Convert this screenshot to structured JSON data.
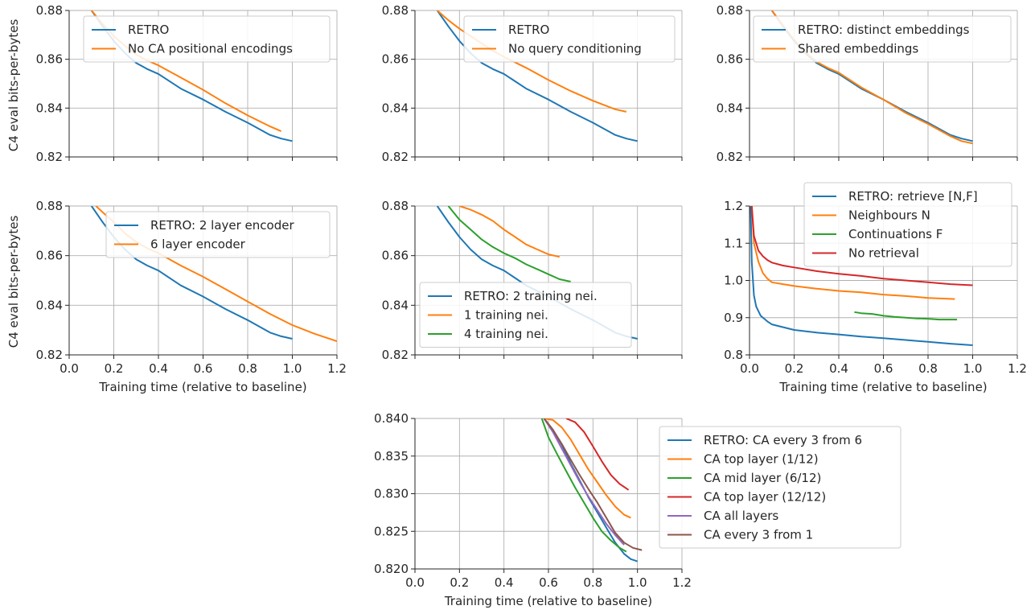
{
  "figure": {
    "ylabel_row1": "C4 eval bits-per-bytes",
    "ylabel_row2": "C4 eval bits-per-bytes",
    "xlabel": "Training time (relative to baseline)"
  },
  "colors": {
    "blue": "#1f77b4",
    "orange": "#ff7f0e",
    "green": "#2ca02c",
    "red": "#d62728",
    "purple": "#9467bd",
    "brown": "#8c564b",
    "grid": "#b0b0b0",
    "axis": "#262626"
  },
  "chart_data": [
    {
      "type": "line",
      "xlim": [
        0,
        1.2
      ],
      "ylim": [
        0.82,
        0.88
      ],
      "xticks": [
        0,
        0.2,
        0.4,
        0.6,
        0.8,
        1.0,
        1.2
      ],
      "yticks": [
        0.82,
        0.84,
        0.86,
        0.88
      ],
      "xlabel": "",
      "ylabel": "C4 eval bits-per-bytes",
      "grid": true,
      "legend": "top-left",
      "series": [
        {
          "name": "RETRO",
          "color": "blue",
          "x": [
            0.1,
            0.15,
            0.2,
            0.25,
            0.3,
            0.35,
            0.4,
            0.5,
            0.6,
            0.7,
            0.8,
            0.9,
            0.95,
            1.0
          ],
          "y": [
            0.88,
            0.8735,
            0.8675,
            0.8625,
            0.8585,
            0.856,
            0.854,
            0.848,
            0.8435,
            0.8385,
            0.834,
            0.829,
            0.8275,
            0.8265
          ]
        },
        {
          "name": "No CA positional encodings",
          "color": "orange",
          "x": [
            0.1,
            0.15,
            0.2,
            0.25,
            0.3,
            0.35,
            0.4,
            0.5,
            0.6,
            0.7,
            0.8,
            0.9,
            0.95
          ],
          "y": [
            0.88,
            0.8745,
            0.8695,
            0.8655,
            0.862,
            0.8595,
            0.8575,
            0.8525,
            0.8475,
            0.842,
            0.837,
            0.8325,
            0.8305
          ]
        }
      ]
    },
    {
      "type": "line",
      "xlim": [
        0,
        1.2
      ],
      "ylim": [
        0.82,
        0.88
      ],
      "xticks": [
        0,
        0.2,
        0.4,
        0.6,
        0.8,
        1.0,
        1.2
      ],
      "yticks": [
        0.82,
        0.84,
        0.86,
        0.88
      ],
      "xlabel": "",
      "ylabel": "",
      "grid": true,
      "legend": "top-right",
      "series": [
        {
          "name": "RETRO",
          "color": "blue",
          "x": [
            0.1,
            0.15,
            0.2,
            0.25,
            0.3,
            0.35,
            0.4,
            0.5,
            0.6,
            0.7,
            0.8,
            0.9,
            0.95,
            1.0
          ],
          "y": [
            0.88,
            0.8735,
            0.8675,
            0.8625,
            0.8585,
            0.856,
            0.854,
            0.848,
            0.8435,
            0.8385,
            0.834,
            0.829,
            0.8275,
            0.8265
          ]
        },
        {
          "name": "No query conditioning",
          "color": "orange",
          "x": [
            0.1,
            0.15,
            0.2,
            0.25,
            0.3,
            0.35,
            0.4,
            0.5,
            0.6,
            0.7,
            0.8,
            0.9,
            0.95
          ],
          "y": [
            0.88,
            0.876,
            0.8725,
            0.8695,
            0.8665,
            0.8635,
            0.861,
            0.8565,
            0.8515,
            0.847,
            0.843,
            0.8395,
            0.8385
          ]
        }
      ]
    },
    {
      "type": "line",
      "xlim": [
        0,
        1.2
      ],
      "ylim": [
        0.82,
        0.88
      ],
      "xticks": [
        0,
        0.2,
        0.4,
        0.6,
        0.8,
        1.0,
        1.2
      ],
      "yticks": [
        0.82,
        0.84,
        0.86,
        0.88
      ],
      "xlabel": "",
      "ylabel": "",
      "grid": true,
      "legend": "top-right",
      "series": [
        {
          "name": "RETRO: distinct embeddings",
          "color": "blue",
          "x": [
            0.1,
            0.15,
            0.2,
            0.25,
            0.3,
            0.35,
            0.4,
            0.5,
            0.6,
            0.7,
            0.8,
            0.9,
            0.95,
            1.0
          ],
          "y": [
            0.88,
            0.8735,
            0.8675,
            0.8625,
            0.8585,
            0.856,
            0.854,
            0.848,
            0.8435,
            0.8385,
            0.834,
            0.829,
            0.8275,
            0.8265
          ]
        },
        {
          "name": "Shared embeddings",
          "color": "orange",
          "x": [
            0.1,
            0.15,
            0.2,
            0.25,
            0.3,
            0.35,
            0.4,
            0.5,
            0.6,
            0.7,
            0.8,
            0.9,
            0.95,
            1.0
          ],
          "y": [
            0.88,
            0.874,
            0.868,
            0.863,
            0.859,
            0.8565,
            0.8545,
            0.8485,
            0.8435,
            0.838,
            0.8335,
            0.8285,
            0.8265,
            0.8255
          ]
        }
      ]
    },
    {
      "type": "line",
      "xlim": [
        0,
        1.2
      ],
      "ylim": [
        0.82,
        0.88
      ],
      "xticks": [
        0,
        0.2,
        0.4,
        0.6,
        0.8,
        1.0,
        1.2
      ],
      "yticks": [
        0.82,
        0.84,
        0.86,
        0.88
      ],
      "xlabel": "Training time (relative to baseline)",
      "ylabel": "C4 eval bits-per-bytes",
      "grid": true,
      "legend": "top-right",
      "series": [
        {
          "name": "RETRO: 2 layer encoder",
          "color": "blue",
          "x": [
            0.1,
            0.15,
            0.2,
            0.25,
            0.3,
            0.35,
            0.4,
            0.5,
            0.6,
            0.7,
            0.8,
            0.9,
            0.95,
            1.0
          ],
          "y": [
            0.88,
            0.8735,
            0.8675,
            0.8625,
            0.8585,
            0.856,
            0.854,
            0.848,
            0.8435,
            0.8385,
            0.834,
            0.829,
            0.8275,
            0.8265
          ]
        },
        {
          "name": "6 layer encoder",
          "color": "orange",
          "x": [
            0.12,
            0.15,
            0.2,
            0.25,
            0.3,
            0.35,
            0.4,
            0.5,
            0.6,
            0.7,
            0.8,
            0.9,
            1.0,
            1.1,
            1.2
          ],
          "y": [
            0.88,
            0.8775,
            0.8735,
            0.869,
            0.8655,
            0.863,
            0.861,
            0.856,
            0.8515,
            0.8465,
            0.8415,
            0.8365,
            0.832,
            0.8285,
            0.8255
          ]
        }
      ]
    },
    {
      "type": "line",
      "xlim": [
        0,
        1.2
      ],
      "ylim": [
        0.82,
        0.88
      ],
      "xticks": [
        0,
        0.2,
        0.4,
        0.6,
        0.8,
        1.0,
        1.2
      ],
      "yticks": [
        0.82,
        0.84,
        0.86,
        0.88
      ],
      "xlabel": "",
      "ylabel": "",
      "grid": true,
      "legend": "bottom-left",
      "series": [
        {
          "name": "RETRO: 2 training nei.",
          "color": "blue",
          "x": [
            0.1,
            0.15,
            0.2,
            0.25,
            0.3,
            0.35,
            0.4,
            0.5,
            0.6,
            0.7,
            0.8,
            0.9,
            0.95,
            1.0
          ],
          "y": [
            0.88,
            0.8735,
            0.8675,
            0.8625,
            0.8585,
            0.856,
            0.854,
            0.848,
            0.8435,
            0.8385,
            0.834,
            0.829,
            0.8275,
            0.8265
          ]
        },
        {
          "name": "1 training nei.",
          "color": "orange",
          "x": [
            0.2,
            0.25,
            0.3,
            0.35,
            0.4,
            0.45,
            0.5,
            0.55,
            0.6,
            0.65
          ],
          "y": [
            0.88,
            0.8785,
            0.8765,
            0.874,
            0.8705,
            0.8675,
            0.8645,
            0.8625,
            0.8605,
            0.8595
          ]
        },
        {
          "name": "4 training nei.",
          "color": "green",
          "x": [
            0.15,
            0.2,
            0.25,
            0.3,
            0.35,
            0.4,
            0.45,
            0.5,
            0.55,
            0.6,
            0.65,
            0.7
          ],
          "y": [
            0.88,
            0.8745,
            0.8705,
            0.8665,
            0.8635,
            0.861,
            0.859,
            0.8565,
            0.8545,
            0.8525,
            0.8505,
            0.8495
          ]
        }
      ]
    },
    {
      "type": "line",
      "xlim": [
        0,
        1.2
      ],
      "ylim": [
        0.8,
        1.2
      ],
      "xticks": [
        0,
        0.2,
        0.4,
        0.6,
        0.8,
        1.0,
        1.2
      ],
      "yticks": [
        0.8,
        0.9,
        1.0,
        1.1,
        1.2
      ],
      "xlabel": "Training time (relative to baseline)",
      "ylabel": "",
      "grid": true,
      "legend": "top-right",
      "series": [
        {
          "name": "RETRO: retrieve [N,F]",
          "color": "blue",
          "x": [
            0.005,
            0.01,
            0.02,
            0.03,
            0.05,
            0.08,
            0.1,
            0.2,
            0.3,
            0.4,
            0.5,
            0.6,
            0.7,
            0.8,
            0.9,
            1.0
          ],
          "y": [
            1.2,
            1.05,
            0.96,
            0.93,
            0.905,
            0.89,
            0.882,
            0.867,
            0.86,
            0.855,
            0.849,
            0.845,
            0.84,
            0.835,
            0.83,
            0.826
          ]
        },
        {
          "name": "Neighbours N",
          "color": "orange",
          "x": [
            0.01,
            0.02,
            0.04,
            0.06,
            0.08,
            0.1,
            0.15,
            0.2,
            0.3,
            0.4,
            0.5,
            0.6,
            0.7,
            0.8,
            0.92
          ],
          "y": [
            1.2,
            1.1,
            1.05,
            1.02,
            1.005,
            0.995,
            0.99,
            0.985,
            0.978,
            0.972,
            0.968,
            0.962,
            0.958,
            0.953,
            0.95
          ]
        },
        {
          "name": "Continuations F",
          "color": "green",
          "x": [
            0.47,
            0.5,
            0.55,
            0.6,
            0.65,
            0.7,
            0.75,
            0.8,
            0.85,
            0.93
          ],
          "y": [
            0.915,
            0.912,
            0.91,
            0.905,
            0.902,
            0.9,
            0.898,
            0.897,
            0.895,
            0.895
          ]
        },
        {
          "name": "No retrieval",
          "color": "red",
          "x": [
            0.01,
            0.02,
            0.04,
            0.06,
            0.08,
            0.1,
            0.15,
            0.2,
            0.3,
            0.4,
            0.5,
            0.6,
            0.7,
            0.8,
            0.9,
            1.0
          ],
          "y": [
            1.2,
            1.12,
            1.08,
            1.065,
            1.055,
            1.048,
            1.04,
            1.035,
            1.025,
            1.018,
            1.012,
            1.005,
            1.0,
            0.995,
            0.99,
            0.987
          ]
        }
      ]
    },
    {
      "type": "line",
      "xlim": [
        0,
        1.2
      ],
      "ylim": [
        0.82,
        0.84
      ],
      "xticks": [
        0,
        0.2,
        0.4,
        0.6,
        0.8,
        1.0,
        1.2
      ],
      "yticks": [
        0.82,
        0.825,
        0.83,
        0.835,
        0.84
      ],
      "xlabel": "Training time (relative to baseline)",
      "ylabel": "",
      "grid": true,
      "legend": "outside-right",
      "series": [
        {
          "name": "RETRO: CA every 3 from 6",
          "color": "blue",
          "x": [
            0.58,
            0.62,
            0.66,
            0.7,
            0.74,
            0.78,
            0.82,
            0.86,
            0.9,
            0.94,
            0.97,
            1.0
          ],
          "y": [
            0.84,
            0.8385,
            0.8365,
            0.834,
            0.8318,
            0.8295,
            0.8275,
            0.8255,
            0.8235,
            0.822,
            0.8213,
            0.821
          ]
        },
        {
          "name": "CA top layer (1/12)",
          "color": "orange",
          "x": [
            0.58,
            0.62,
            0.66,
            0.7,
            0.74,
            0.78,
            0.82,
            0.86,
            0.9,
            0.94,
            0.97
          ],
          "y": [
            0.84,
            0.8398,
            0.8388,
            0.8372,
            0.8352,
            0.8332,
            0.8315,
            0.8298,
            0.8283,
            0.8272,
            0.8268
          ]
        },
        {
          "name": "CA mid layer (6/12)",
          "color": "green",
          "x": [
            0.57,
            0.6,
            0.64,
            0.68,
            0.72,
            0.76,
            0.8,
            0.84,
            0.88,
            0.92,
            0.95
          ],
          "y": [
            0.84,
            0.8375,
            0.8352,
            0.833,
            0.8308,
            0.8288,
            0.8268,
            0.825,
            0.8238,
            0.8228,
            0.8223
          ]
        },
        {
          "name": "CA top layer (12/12)",
          "color": "red",
          "x": [
            0.68,
            0.72,
            0.76,
            0.8,
            0.84,
            0.88,
            0.92,
            0.96
          ],
          "y": [
            0.84,
            0.8395,
            0.8382,
            0.8363,
            0.8343,
            0.8325,
            0.8313,
            0.8305
          ]
        },
        {
          "name": "CA all layers",
          "color": "purple",
          "x": [
            0.58,
            0.62,
            0.66,
            0.7,
            0.74,
            0.78,
            0.82,
            0.86,
            0.9,
            0.94
          ],
          "y": [
            0.84,
            0.8382,
            0.836,
            0.8338,
            0.8316,
            0.8296,
            0.8278,
            0.826,
            0.8245,
            0.8232
          ]
        },
        {
          "name": "CA every 3 from 1",
          "color": "brown",
          "x": [
            0.58,
            0.62,
            0.66,
            0.7,
            0.74,
            0.78,
            0.82,
            0.86,
            0.9,
            0.94,
            0.98,
            1.02
          ],
          "y": [
            0.84,
            0.8385,
            0.8366,
            0.8345,
            0.8325,
            0.8306,
            0.8288,
            0.8268,
            0.8248,
            0.8235,
            0.8228,
            0.8225
          ]
        }
      ]
    }
  ]
}
